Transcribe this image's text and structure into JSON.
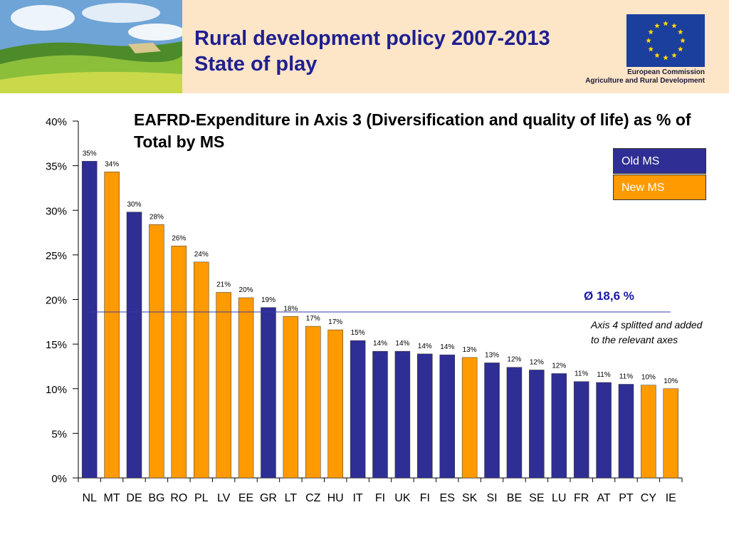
{
  "header": {
    "title_line1": "Rural development policy 2007-2013",
    "title_line2": "State of play",
    "eu_line1": "European Commission",
    "eu_line2": "Agriculture and Rural Development"
  },
  "legend": {
    "old_ms": "Old MS",
    "new_ms": "New MS"
  },
  "average_label": "Ø 18,6 %",
  "note": "Axis 4 splitted and added to the relevant axes",
  "colors": {
    "old_ms": "#2e2e95",
    "new_ms": "#ff9a00",
    "average_line": "#3a3aa8",
    "header_bg": "#fde5c8"
  },
  "chart_data": {
    "type": "bar",
    "title": "EAFRD-Expenditure in Axis 3 (Diversification and quality of life) as % of Total by MS",
    "xlabel": "",
    "ylabel": "",
    "ylim": [
      0,
      40
    ],
    "yticks": [
      "0%",
      "5%",
      "10%",
      "15%",
      "20%",
      "25%",
      "30%",
      "35%",
      "40%"
    ],
    "categories": [
      "NL",
      "MT",
      "DE",
      "BG",
      "RO",
      "PL",
      "LV",
      "EE",
      "GR",
      "LT",
      "CZ",
      "HU",
      "IT",
      "FI",
      "UK",
      "FI",
      "ES",
      "SK",
      "SI",
      "BE",
      "SE",
      "LU",
      "FR",
      "AT",
      "PT",
      "CY",
      "IE"
    ],
    "values": [
      35.5,
      34.3,
      29.8,
      28.4,
      26.0,
      24.2,
      20.8,
      20.2,
      19.1,
      18.1,
      17.0,
      16.6,
      15.4,
      14.2,
      14.2,
      13.9,
      13.8,
      13.5,
      12.9,
      12.4,
      12.1,
      11.7,
      10.8,
      10.7,
      10.5,
      10.4,
      10.0
    ],
    "labels": [
      "35%",
      "34%",
      "30%",
      "28%",
      "26%",
      "24%",
      "21%",
      "20%",
      "19%",
      "18%",
      "17%",
      "17%",
      "15%",
      "14%",
      "14%",
      "14%",
      "14%",
      "13%",
      "13%",
      "12%",
      "12%",
      "12%",
      "11%",
      "11%",
      "11%",
      "10%",
      "10%"
    ],
    "group": [
      "old",
      "new",
      "old",
      "new",
      "new",
      "new",
      "new",
      "new",
      "old",
      "new",
      "new",
      "new",
      "old",
      "old",
      "old",
      "old",
      "old",
      "new",
      "old",
      "old",
      "old",
      "old",
      "old",
      "old",
      "old",
      "new",
      "new"
    ],
    "series_legend": [
      "Old MS",
      "New MS"
    ],
    "average": 18.6,
    "grid": false,
    "legend_position": "right"
  }
}
